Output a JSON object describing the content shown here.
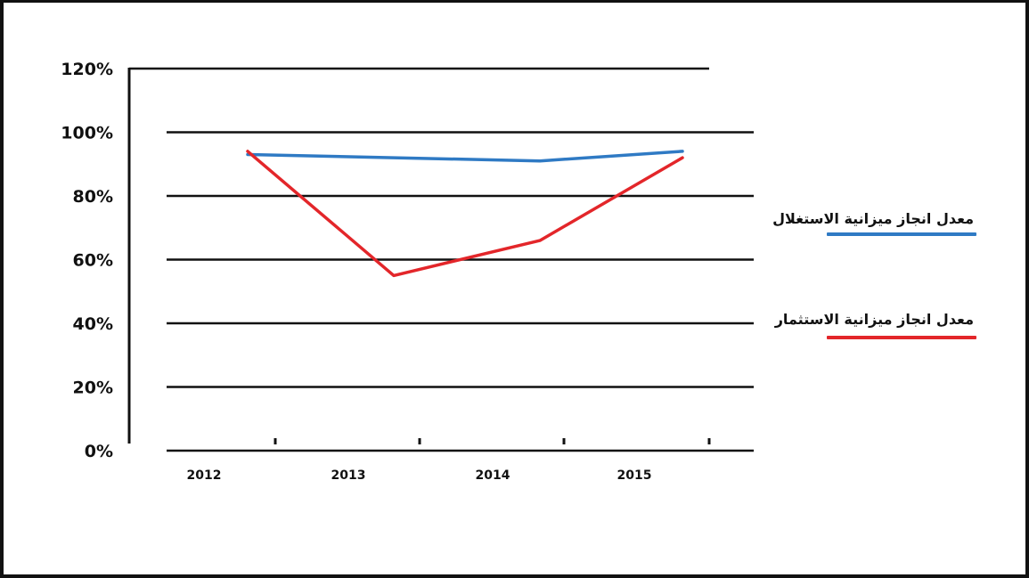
{
  "chart_data": {
    "type": "line",
    "categories": [
      "2012",
      "2013",
      "2014",
      "2015"
    ],
    "x_tick_labels": [
      "2012",
      "2013",
      "2014",
      "2015"
    ],
    "y_tick_labels": [
      "0%",
      "20%",
      "40%",
      "60%",
      "80%",
      "100%",
      "120%"
    ],
    "ylim": [
      0,
      120
    ],
    "grid": true,
    "legend_position": "right",
    "series": [
      {
        "name": "معدل انجاز ميزانية الاستغلال",
        "color": "#2f7ac4",
        "values": [
          93,
          92,
          91,
          94
        ]
      },
      {
        "name": "معدل انجاز ميزانية الاستثمار",
        "color": "#e3262a",
        "values": [
          94,
          55,
          66,
          92
        ]
      }
    ]
  }
}
